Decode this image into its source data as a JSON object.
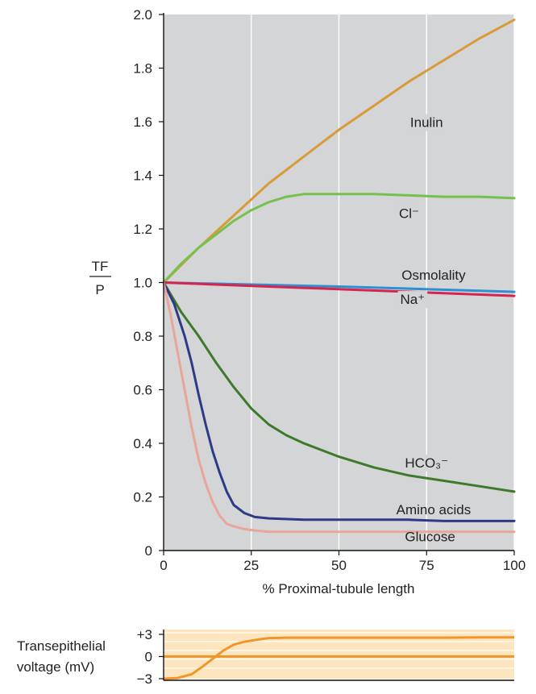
{
  "chart_data": [
    {
      "type": "line",
      "title": "",
      "xlabel": "% Proximal-tubule length",
      "ylabel_top": "TF",
      "ylabel_bottom": "P",
      "xlim": [
        0,
        100
      ],
      "ylim": [
        0,
        2.0
      ],
      "x_ticks": [
        "0",
        "25",
        "50",
        "75",
        "100"
      ],
      "y_ticks": [
        "0",
        "0.2",
        "0.4",
        "0.6",
        "0.8",
        "1.0",
        "1.2",
        "1.4",
        "1.6",
        "1.8",
        "2.0"
      ],
      "grid": true,
      "background": "#d4d5d7",
      "series": [
        {
          "name": "Inulin",
          "color": "#d99a3a",
          "x": [
            0,
            10,
            20,
            30,
            40,
            50,
            60,
            70,
            80,
            90,
            100
          ],
          "y": [
            1.0,
            1.13,
            1.25,
            1.37,
            1.47,
            1.57,
            1.66,
            1.75,
            1.83,
            1.91,
            1.98
          ]
        },
        {
          "name": "Cl⁻",
          "color": "#74c24d",
          "x": [
            0,
            5,
            10,
            15,
            20,
            25,
            30,
            35,
            40,
            42,
            50,
            60,
            70,
            80,
            90,
            100
          ],
          "y": [
            1.0,
            1.07,
            1.13,
            1.18,
            1.23,
            1.27,
            1.3,
            1.32,
            1.33,
            1.33,
            1.33,
            1.33,
            1.325,
            1.32,
            1.32,
            1.315
          ]
        },
        {
          "name": "Osmolality",
          "color": "#2f8fd1",
          "x": [
            0,
            50,
            100
          ],
          "y": [
            1.0,
            0.985,
            0.965
          ]
        },
        {
          "name": "Na⁺",
          "color": "#d6244e",
          "x": [
            0,
            50,
            100
          ],
          "y": [
            1.0,
            0.975,
            0.95
          ]
        },
        {
          "name": "HCO₃⁻",
          "color": "#3d7a2a",
          "x": [
            0,
            5,
            10,
            15,
            20,
            25,
            30,
            35,
            40,
            50,
            60,
            70,
            80,
            90,
            100
          ],
          "y": [
            1.0,
            0.89,
            0.8,
            0.7,
            0.61,
            0.53,
            0.47,
            0.43,
            0.4,
            0.35,
            0.31,
            0.28,
            0.26,
            0.24,
            0.22
          ]
        },
        {
          "name": "Amino acids",
          "color": "#2e3a86",
          "x": [
            0,
            3,
            6,
            8,
            10,
            12,
            14,
            16,
            18,
            20,
            23,
            26,
            30,
            40,
            50,
            60,
            70,
            80,
            90,
            100
          ],
          "y": [
            1.0,
            0.92,
            0.8,
            0.7,
            0.58,
            0.47,
            0.37,
            0.29,
            0.22,
            0.17,
            0.14,
            0.125,
            0.12,
            0.115,
            0.115,
            0.115,
            0.115,
            0.11,
            0.11,
            0.11
          ]
        },
        {
          "name": "Glucose",
          "color": "#e8a59a",
          "x": [
            0,
            2,
            4,
            6,
            8,
            10,
            12,
            14,
            16,
            18,
            20,
            23,
            26,
            30,
            40,
            60,
            80,
            100
          ],
          "y": [
            1.0,
            0.88,
            0.74,
            0.6,
            0.46,
            0.34,
            0.25,
            0.18,
            0.13,
            0.1,
            0.09,
            0.08,
            0.075,
            0.07,
            0.07,
            0.07,
            0.07,
            0.07
          ]
        }
      ]
    },
    {
      "type": "line",
      "title": "",
      "ylabel_line1": "Transepithelial",
      "ylabel_line2": "voltage (mV)",
      "xlim": [
        0,
        100
      ],
      "ylim": [
        -3,
        3
      ],
      "y_ticks": [
        "+3",
        "0",
        "−3"
      ],
      "band_color": "#fde6bf",
      "series": [
        {
          "name": "",
          "color": "#f0962a",
          "x": [
            0,
            4,
            8,
            11,
            14,
            17,
            20,
            23,
            27,
            30,
            35,
            40,
            50,
            60,
            70,
            80,
            90,
            100
          ],
          "y": [
            -3.0,
            -2.9,
            -2.4,
            -1.4,
            -0.3,
            0.8,
            1.6,
            2.0,
            2.3,
            2.5,
            2.55,
            2.55,
            2.55,
            2.55,
            2.55,
            2.55,
            2.6,
            2.6
          ]
        },
        {
          "name": "",
          "color": "#f0962a",
          "x": [
            0,
            100
          ],
          "y": [
            0,
            0
          ]
        }
      ]
    }
  ]
}
